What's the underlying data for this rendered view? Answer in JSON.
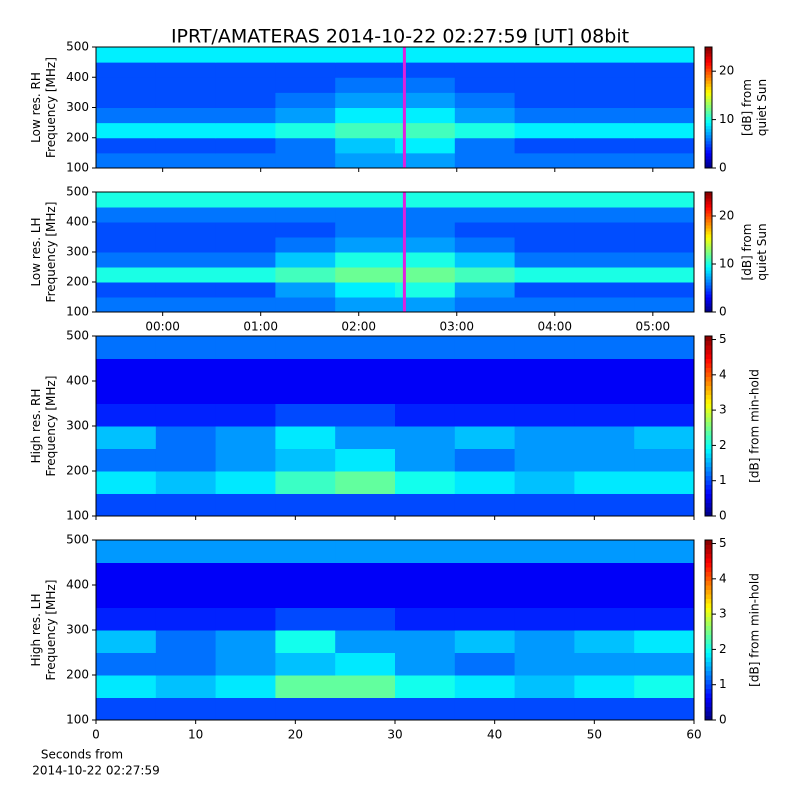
{
  "title": "IPRT/AMATERAS 2014-10-22 02:27:59 [UT]   08bit",
  "chart_data": [
    {
      "type": "heatmap",
      "ylabel": [
        "Low res. RH",
        "Frequency [MHz]"
      ],
      "xlim": [
        -0.68,
        5.42
      ],
      "xticks": [
        {
          "value": 0,
          "label": "00:00"
        },
        {
          "value": 1,
          "label": "01:00"
        },
        {
          "value": 2,
          "label": "02:00"
        },
        {
          "value": 3,
          "label": "03:00"
        },
        {
          "value": 4,
          "label": "04:00"
        },
        {
          "value": 5,
          "label": "05:00"
        }
      ],
      "show_xtick_labels": false,
      "ylim": [
        100,
        500
      ],
      "yticks": [
        100,
        200,
        300,
        400,
        500
      ],
      "xbins": [
        -0.68,
        -0.07,
        0.54,
        1.15,
        1.76,
        2.37,
        2.98,
        3.59,
        4.2,
        4.81,
        5.42
      ],
      "ybins": [
        100,
        150,
        200,
        250,
        300,
        350,
        400,
        450,
        500
      ],
      "z": [
        [
          6,
          6,
          6,
          6,
          7,
          7,
          6,
          6,
          6,
          6
        ],
        [
          5,
          5,
          5,
          6,
          8,
          9,
          6,
          5,
          5,
          5
        ],
        [
          9,
          9,
          9,
          10,
          11,
          11,
          10,
          9,
          9,
          9
        ],
        [
          6,
          6,
          6,
          7,
          9,
          9,
          7,
          6,
          6,
          6
        ],
        [
          5,
          5,
          5,
          6,
          7,
          7,
          6,
          5,
          5,
          5
        ],
        [
          5,
          5,
          5,
          5,
          6,
          6,
          5,
          5,
          5,
          5
        ],
        [
          5,
          5,
          5,
          5,
          5,
          5,
          5,
          5,
          5,
          5
        ],
        [
          9,
          9,
          9,
          9,
          9,
          9,
          9,
          9,
          9,
          9
        ]
      ],
      "marker_x": 2.466,
      "marker_color": "#e020e0",
      "colormap": "jet",
      "clim": [
        0,
        25
      ],
      "cticks": [
        0,
        10,
        20
      ],
      "colorbar_label": [
        "[dB] from",
        "quiet Sun"
      ]
    },
    {
      "type": "heatmap",
      "ylabel": [
        "Low res. LH",
        "Frequency [MHz]"
      ],
      "xlim": [
        -0.68,
        5.42
      ],
      "xticks": [
        {
          "value": 0,
          "label": "00:00"
        },
        {
          "value": 1,
          "label": "01:00"
        },
        {
          "value": 2,
          "label": "02:00"
        },
        {
          "value": 3,
          "label": "03:00"
        },
        {
          "value": 4,
          "label": "04:00"
        },
        {
          "value": 5,
          "label": "05:00"
        }
      ],
      "show_xtick_labels": true,
      "ylim": [
        100,
        500
      ],
      "yticks": [
        100,
        200,
        300,
        400,
        500
      ],
      "xbins": [
        -0.68,
        -0.07,
        0.54,
        1.15,
        1.76,
        2.37,
        2.98,
        3.59,
        4.2,
        4.81,
        5.42
      ],
      "ybins": [
        100,
        150,
        200,
        250,
        300,
        350,
        400,
        450,
        500
      ],
      "z": [
        [
          6,
          6,
          6,
          6,
          7,
          7,
          6,
          6,
          6,
          6
        ],
        [
          5,
          5,
          5,
          7,
          9,
          10,
          7,
          5,
          5,
          5
        ],
        [
          10,
          10,
          10,
          11,
          12,
          12,
          11,
          10,
          10,
          10
        ],
        [
          6,
          6,
          6,
          8,
          10,
          10,
          8,
          6,
          6,
          6
        ],
        [
          5,
          5,
          5,
          6,
          7,
          7,
          6,
          5,
          5,
          5
        ],
        [
          5,
          5,
          5,
          5,
          6,
          6,
          5,
          5,
          5,
          5
        ],
        [
          6,
          6,
          6,
          6,
          6,
          6,
          6,
          6,
          6,
          6
        ],
        [
          10,
          10,
          10,
          10,
          10,
          10,
          10,
          10,
          10,
          10
        ]
      ],
      "marker_x": 2.466,
      "marker_color": "#e020e0",
      "colormap": "jet",
      "clim": [
        0,
        25
      ],
      "cticks": [
        0,
        10,
        20
      ],
      "colorbar_label": [
        "[dB] from",
        "quiet Sun"
      ]
    },
    {
      "type": "heatmap",
      "ylabel": [
        "High res. RH",
        "Frequency [MHz]"
      ],
      "xlim": [
        0,
        60
      ],
      "xticks": [
        0,
        10,
        20,
        30,
        40,
        50,
        60
      ],
      "show_xtick_labels": false,
      "ylim": [
        100,
        500
      ],
      "yticks": [
        100,
        200,
        300,
        400,
        500
      ],
      "xbins": [
        0,
        6,
        12,
        18,
        24,
        30,
        36,
        42,
        48,
        54,
        60
      ],
      "ybins": [
        100,
        150,
        200,
        250,
        300,
        350,
        400,
        450,
        500
      ],
      "z": [
        [
          1,
          1,
          1,
          1,
          1,
          1,
          1,
          1,
          1,
          1
        ],
        [
          1.8,
          1.6,
          1.8,
          2.2,
          2.4,
          2,
          1.8,
          1.6,
          1.8,
          1.8
        ],
        [
          1.2,
          1.2,
          1.4,
          1.6,
          1.8,
          1.4,
          1.2,
          1.4,
          1.4,
          1.4
        ],
        [
          1.6,
          1.2,
          1.4,
          1.8,
          1.4,
          1.4,
          1.6,
          1.4,
          1.4,
          1.6
        ],
        [
          0.8,
          0.8,
          0.8,
          1,
          1,
          0.8,
          0.8,
          0.8,
          0.8,
          0.8
        ],
        [
          0.6,
          0.6,
          0.6,
          0.6,
          0.6,
          0.6,
          0.6,
          0.6,
          0.6,
          0.6
        ],
        [
          0.6,
          0.6,
          0.6,
          0.6,
          0.6,
          0.6,
          0.6,
          0.6,
          0.6,
          0.6
        ],
        [
          1.2,
          1.2,
          1.2,
          1.2,
          1.2,
          1.2,
          1.2,
          1.2,
          1.2,
          1.2
        ]
      ],
      "colormap": "jet",
      "clim": [
        0,
        5.1
      ],
      "cticks": [
        0,
        1,
        2,
        3,
        4,
        5
      ],
      "colorbar_label": [
        "[dB] from min-hold"
      ]
    },
    {
      "type": "heatmap",
      "ylabel": [
        "High res. LH",
        "Frequency [MHz]"
      ],
      "xlim": [
        0,
        60
      ],
      "xticks": [
        0,
        10,
        20,
        30,
        40,
        50,
        60
      ],
      "show_xtick_labels": true,
      "xlabel": [
        "Seconds from",
        "2014-10-22 02:27:59"
      ],
      "ylim": [
        100,
        500
      ],
      "yticks": [
        100,
        200,
        300,
        400,
        500
      ],
      "xbins": [
        0,
        6,
        12,
        18,
        24,
        30,
        36,
        42,
        48,
        54,
        60
      ],
      "ybins": [
        100,
        150,
        200,
        250,
        300,
        350,
        400,
        450,
        500
      ],
      "z": [
        [
          1,
          1,
          1,
          1,
          1,
          1,
          1,
          1,
          1,
          1
        ],
        [
          1.8,
          1.6,
          1.8,
          2.4,
          2.4,
          2,
          1.8,
          1.6,
          1.8,
          2
        ],
        [
          1.2,
          1.2,
          1.4,
          1.6,
          1.8,
          1.4,
          1.2,
          1.4,
          1.4,
          1.4
        ],
        [
          1.6,
          1.2,
          1.4,
          2,
          1.4,
          1.4,
          1.6,
          1.4,
          1.6,
          1.8
        ],
        [
          0.8,
          0.8,
          0.8,
          1,
          1,
          0.8,
          0.8,
          0.8,
          0.8,
          0.8
        ],
        [
          0.6,
          0.6,
          0.6,
          0.6,
          0.6,
          0.6,
          0.6,
          0.6,
          0.6,
          0.6
        ],
        [
          0.6,
          0.6,
          0.6,
          0.6,
          0.6,
          0.6,
          0.6,
          0.6,
          0.6,
          0.6
        ],
        [
          1.4,
          1.4,
          1.4,
          1.4,
          1.4,
          1.4,
          1.4,
          1.4,
          1.4,
          1.4
        ]
      ],
      "colormap": "jet",
      "clim": [
        0,
        5.1
      ],
      "cticks": [
        0,
        1,
        2,
        3,
        4,
        5
      ],
      "colorbar_label": [
        "[dB] from min-hold"
      ]
    }
  ]
}
